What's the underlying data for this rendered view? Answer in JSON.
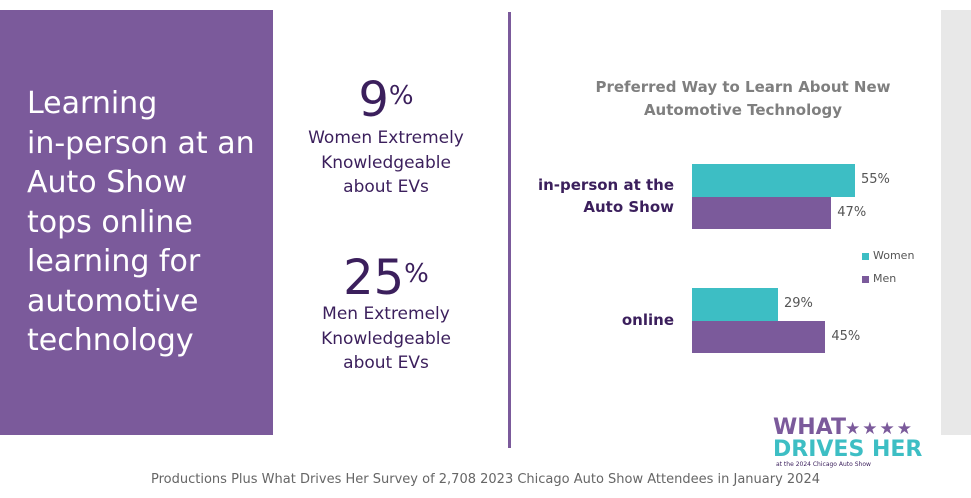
{
  "headline": [
    "Learning",
    "in-person at an",
    "Auto Show",
    "tops online",
    "learning for",
    "automotive",
    "technology"
  ],
  "stats": [
    {
      "number": "9",
      "unit": "%",
      "text": [
        "Women Extremely",
        "Knowledgeable",
        "about EVs"
      ]
    },
    {
      "number": "25",
      "unit": "%",
      "text": [
        "Men Extremely",
        "Knowledgeable",
        "about EVs"
      ]
    }
  ],
  "chart_data": {
    "type": "bar",
    "orientation": "horizontal",
    "title": [
      "Preferred Way to Learn About New",
      "Automotive Technology"
    ],
    "categories": [
      "in-person at the Auto Show",
      "online"
    ],
    "series": [
      {
        "name": "Women",
        "color": "#3dbec4",
        "values": [
          55,
          29
        ],
        "value_labels": [
          "55%",
          "29%"
        ]
      },
      {
        "name": "Men",
        "color": "#7b5a9b",
        "values": [
          47,
          45
        ],
        "value_labels": [
          "47%",
          "45%"
        ]
      }
    ],
    "legend": "right"
  },
  "logo": {
    "line1": "WHAT",
    "line2": "DRIVES HER",
    "tagline": "at the 2024 Chicago Auto Show"
  },
  "footer": "Productions Plus What Drives Her Survey of 2,708 2023 Chicago Auto Show Attendees in January 2024"
}
